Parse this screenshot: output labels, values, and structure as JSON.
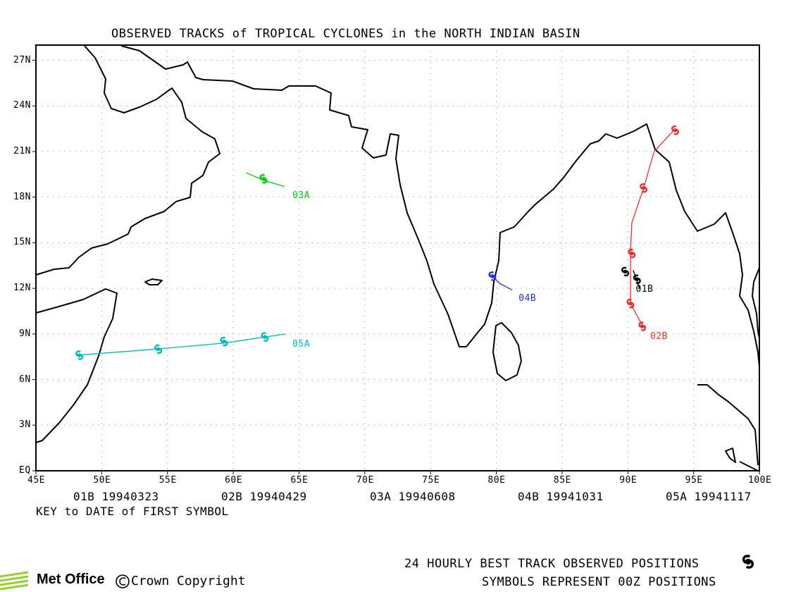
{
  "title": "OBSERVED TRACKS of TROPICAL CYCLONES in the NORTH INDIAN BASIN",
  "lon_ticks": [
    "45E",
    "50E",
    "55E",
    "60E",
    "65E",
    "70E",
    "75E",
    "80E",
    "85E",
    "90E",
    "95E",
    "100E"
  ],
  "lat_ticks": [
    "EQ",
    "3N",
    "6N",
    "9N",
    "12N",
    "15N",
    "18N",
    "21N",
    "24N",
    "27N"
  ],
  "key": [
    {
      "id": "01B",
      "date": "19940323"
    },
    {
      "id": "02B",
      "date": "19940429"
    },
    {
      "id": "03A",
      "date": "19940608"
    },
    {
      "id": "04B",
      "date": "19941031"
    },
    {
      "id": "05A",
      "date": "19941117"
    }
  ],
  "key_caption": "KEY to DATE of FIRST SYMBOL",
  "legend_line1": "24 HOURLY BEST TRACK OBSERVED POSITIONS",
  "legend_line2": "SYMBOLS REPRESENT 00Z POSITIONS",
  "logo": "Met Office",
  "copyright": "Crown Copyright",
  "chart_data": {
    "type": "scatter",
    "title": "OBSERVED TRACKS of TROPICAL CYCLONES in the NORTH INDIAN BASIN",
    "xlim": [
      45,
      100
    ],
    "ylim": [
      0,
      28
    ],
    "grid": true,
    "series": [
      {
        "name": "01B",
        "color": "#000000",
        "track": [
          [
            90.4,
            13.2
          ],
          [
            90.9,
            12.0
          ]
        ],
        "symbols": [
          [
            89.8,
            13.1
          ],
          [
            90.7,
            12.6
          ]
        ],
        "label_at": [
          90.6,
          11.9
        ]
      },
      {
        "name": "02B",
        "color": "#e83030",
        "track": [
          [
            91.2,
            9.4
          ],
          [
            90.2,
            11.0
          ],
          [
            90.2,
            14.3
          ],
          [
            90.3,
            16.3
          ],
          [
            91.2,
            18.6
          ],
          [
            92.0,
            21.0
          ],
          [
            93.5,
            22.4
          ]
        ],
        "symbols": [
          [
            91.1,
            9.5
          ],
          [
            90.2,
            11.0
          ],
          [
            90.3,
            14.3
          ],
          [
            91.2,
            18.6
          ],
          [
            93.6,
            22.4
          ]
        ],
        "label_at": [
          91.7,
          8.8
        ]
      },
      {
        "name": "03A",
        "color": "#00cc00",
        "track": [
          [
            61.0,
            19.6
          ],
          [
            62.3,
            19.1
          ],
          [
            63.9,
            18.7
          ]
        ],
        "symbols": [
          [
            62.3,
            19.2
          ]
        ],
        "label_at": [
          64.5,
          18.1
        ]
      },
      {
        "name": "04B",
        "color": "#2233dd",
        "track": [
          [
            79.7,
            12.8
          ],
          [
            80.3,
            12.3
          ],
          [
            81.2,
            11.9
          ]
        ],
        "symbols": [
          [
            79.7,
            12.8
          ]
        ],
        "label_at": [
          81.7,
          11.3
        ]
      },
      {
        "name": "05A",
        "color": "#00b8b8",
        "track": [
          [
            48.1,
            7.6
          ],
          [
            54.1,
            8.0
          ],
          [
            59.3,
            8.4
          ],
          [
            62.4,
            8.8
          ],
          [
            64.0,
            9.0
          ]
        ],
        "symbols": [
          [
            48.3,
            7.6
          ],
          [
            54.3,
            8.0
          ],
          [
            59.3,
            8.5
          ],
          [
            62.4,
            8.8
          ]
        ],
        "label_at": [
          64.5,
          8.3
        ]
      }
    ]
  }
}
